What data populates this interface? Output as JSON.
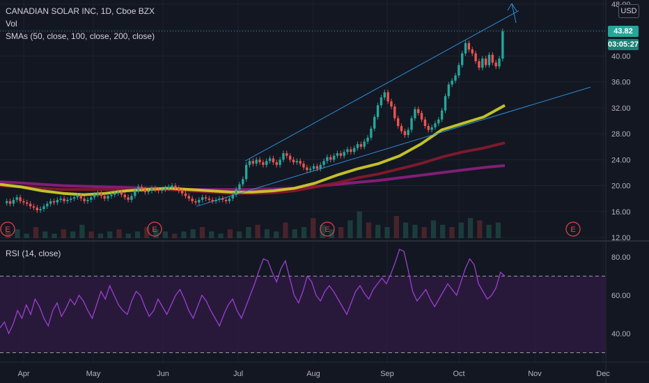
{
  "legend": {
    "title": "CANADIAN SOLAR INC, 1D, Cboe BZX",
    "vol": "Vol",
    "smas": "SMAs (50, close, 100, close, 200, close)",
    "rsi": "RSI (14, close)"
  },
  "currency": "USD",
  "last_price_tag": "43.82",
  "countdown_tag": "03:05:27",
  "earnings_marker": "E",
  "colors": {
    "background": "#131722",
    "up": "#26a69a",
    "down": "#ef5350",
    "sma50": "#d4d42a",
    "sma100": "#8b1a2e",
    "sma200": "#8e1f7f",
    "rsi_line": "#9c3fd1",
    "trendline": "#2a8fd8"
  },
  "chart_data": [
    {
      "type": "candlestick",
      "title": "CANADIAN SOLAR INC, 1D, Cboe BZX",
      "price_axis_ticks": [
        "48.00",
        "44.00",
        "40.00",
        "36.00",
        "32.00",
        "28.00",
        "24.00",
        "20.00",
        "16.00",
        "12.00"
      ],
      "ylim": [
        12,
        48
      ],
      "time_axis_labels": [
        "Apr",
        "May",
        "Jun",
        "Jul",
        "Aug",
        "Sep",
        "Oct",
        "Nov",
        "Dec"
      ],
      "last_price": 43.82,
      "earnings_markers": [
        "Apr",
        "May",
        "Aug",
        "Nov"
      ],
      "series": [
        {
          "name": "Price",
          "close": [
            17.6,
            17.2,
            17.8,
            18.2,
            17.6,
            17.4,
            17.2,
            16.8,
            16.6,
            16.2,
            16.4,
            16.8,
            17.2,
            17.6,
            17.4,
            17.8,
            18.0,
            17.6,
            17.8,
            18.0,
            18.2,
            18.4,
            18.0,
            17.6,
            17.8,
            18.2,
            18.6,
            18.8,
            18.4,
            18.0,
            18.4,
            18.6,
            18.8,
            19.0,
            18.6,
            18.2,
            17.8,
            18.4,
            19.2,
            19.8,
            19.4,
            19.0,
            19.2,
            19.6,
            19.4,
            19.2,
            19.4,
            19.6,
            19.8,
            20.0,
            19.6,
            19.2,
            18.8,
            18.4,
            18.0,
            17.6,
            17.4,
            17.8,
            18.2,
            18.0,
            17.8,
            17.6,
            17.8,
            18.0,
            17.8,
            17.6,
            18.0,
            18.6,
            19.4,
            20.2,
            21.0,
            23.2,
            23.8,
            23.4,
            24.0,
            23.6,
            23.2,
            23.8,
            24.2,
            23.6,
            23.2,
            24.0,
            25.0,
            24.6,
            24.0,
            23.6,
            23.8,
            23.4,
            22.8,
            22.4,
            22.6,
            23.0,
            22.6,
            23.2,
            23.8,
            24.4,
            24.0,
            24.6,
            25.0,
            24.6,
            25.2,
            25.6,
            25.2,
            25.8,
            26.4,
            26.0,
            26.8,
            27.4,
            28.8,
            30.6,
            32.4,
            33.6,
            34.4,
            33.0,
            32.2,
            30.4,
            29.2,
            28.4,
            27.8,
            28.6,
            30.4,
            31.8,
            31.2,
            30.2,
            29.2,
            28.6,
            29.0,
            29.6,
            30.2,
            31.6,
            33.8,
            35.6,
            36.2,
            37.0,
            38.6,
            40.4,
            42.0,
            41.0,
            40.4,
            39.2,
            38.2,
            39.6,
            38.6,
            40.2,
            39.0,
            38.4,
            39.6,
            43.82
          ],
          "dates": [
            "2024-03-25",
            "2024-10-22"
          ]
        },
        {
          "name": "SMA 50",
          "values": [
            20.2,
            19.8,
            19.2,
            18.8,
            18.6,
            18.8,
            19.2,
            19.4,
            19.6,
            19.4,
            19.2,
            19.0,
            19.0,
            19.2,
            19.6,
            20.4,
            21.6,
            22.6,
            23.4,
            24.6,
            26.4,
            28.6,
            29.6,
            30.6,
            32.4
          ]
        },
        {
          "name": "SMA 100",
          "values": [
            20.0,
            19.8,
            19.6,
            19.4,
            19.4,
            19.4,
            19.4,
            19.4,
            19.4,
            19.2,
            19.0,
            18.8,
            18.8,
            18.9,
            19.2,
            19.8,
            20.4,
            21.2,
            21.8,
            22.6,
            23.4,
            24.4,
            25.2,
            25.8,
            26.6
          ]
        },
        {
          "name": "SMA 200",
          "values": [
            20.6,
            20.4,
            20.2,
            20.0,
            19.9,
            19.8,
            19.7,
            19.6,
            19.5,
            19.4,
            19.4,
            19.4,
            19.4,
            19.5,
            19.6,
            19.9,
            20.2,
            20.5,
            20.8,
            21.2,
            21.6,
            22.0,
            22.4,
            22.8,
            23.1
          ]
        }
      ]
    },
    {
      "type": "line",
      "title": "RSI (14, close)",
      "ylim": [
        28,
        86
      ],
      "axis_ticks": [
        "80.00",
        "60.00",
        "40.00"
      ],
      "bands": [
        70,
        30
      ],
      "series": [
        {
          "name": "RSI",
          "values": [
            43,
            46,
            40,
            45,
            52,
            48,
            55,
            50,
            58,
            54,
            48,
            44,
            52,
            56,
            49,
            53,
            58,
            55,
            60,
            57,
            52,
            48,
            55,
            62,
            58,
            65,
            60,
            55,
            52,
            50,
            57,
            62,
            60,
            54,
            49,
            52,
            58,
            54,
            50,
            55,
            60,
            63,
            58,
            52,
            48,
            54,
            60,
            57,
            52,
            48,
            44,
            50,
            55,
            58,
            52,
            48,
            54,
            60,
            66,
            73,
            79,
            78,
            72,
            67,
            74,
            78,
            69,
            60,
            56,
            62,
            70,
            67,
            60,
            57,
            62,
            65,
            62,
            58,
            54,
            50,
            56,
            62,
            65,
            61,
            58,
            63,
            66,
            69,
            66,
            71,
            77,
            84,
            83,
            73,
            62,
            57,
            60,
            63,
            58,
            54,
            58,
            62,
            66,
            63,
            60,
            67,
            74,
            79,
            76,
            66,
            62,
            58,
            60,
            64,
            72,
            70
          ]
        }
      ]
    },
    {
      "type": "bar",
      "title": "Vol",
      "series": [
        {
          "name": "Volume",
          "values": [
            3,
            4,
            2,
            5,
            3,
            2,
            4,
            3,
            6,
            3,
            2,
            3,
            4,
            2,
            3,
            5,
            4,
            3,
            2,
            3,
            4,
            5,
            3,
            2,
            4,
            3,
            5,
            6,
            4,
            3,
            7,
            4,
            5,
            9,
            6,
            4,
            5,
            8,
            12,
            7,
            6,
            5,
            10,
            7,
            6,
            5,
            8,
            6,
            5,
            7,
            9,
            8,
            6,
            7
          ]
        }
      ]
    }
  ]
}
